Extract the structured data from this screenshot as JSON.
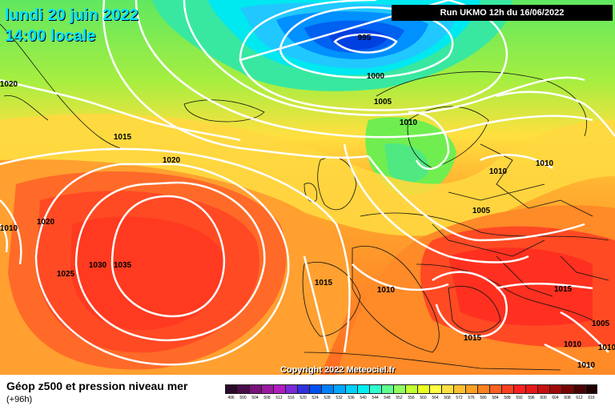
{
  "header": {
    "date_line": "lundi 20 juin 2022",
    "time_line": "14:00 locale",
    "run_info": "Run UKMO 12h du 16/06/2022"
  },
  "map": {
    "copyright": "Copyright 2022 Meteociel.fr",
    "isobar_labels": [
      "995",
      "1000",
      "1005",
      "1010",
      "1015",
      "1020",
      "1020",
      "1010",
      "1020",
      "1025",
      "1030",
      "1035",
      "1015",
      "1010",
      "1015",
      "1010",
      "1010",
      "1005",
      "1015",
      "1010",
      "1005",
      "1010",
      "1010"
    ]
  },
  "footer": {
    "title": "Géop z500 et pression niveau mer",
    "forecast_offset": "(+96h)",
    "scale_values": [
      "496",
      "500",
      "504",
      "508",
      "512",
      "516",
      "520",
      "524",
      "528",
      "532",
      "536",
      "540",
      "544",
      "548",
      "552",
      "556",
      "560",
      "564",
      "568",
      "572",
      "576",
      "580",
      "584",
      "588",
      "592",
      "596",
      "600",
      "604",
      "608",
      "612",
      "616"
    ],
    "scale_colors": [
      "#2a0a2a",
      "#4a0c4a",
      "#7a137a",
      "#9a1aa0",
      "#b21cc0",
      "#7a2ad8",
      "#3030e0",
      "#0050f0",
      "#0080ff",
      "#00a8ff",
      "#00d0ff",
      "#00f0f0",
      "#30ffd0",
      "#60ff90",
      "#90ff60",
      "#c0ff30",
      "#e8ff20",
      "#ffff40",
      "#ffe040",
      "#ffc030",
      "#ffa020",
      "#ff8020",
      "#ff6020",
      "#ff4020",
      "#ff2020",
      "#e81818",
      "#c81010",
      "#a00808",
      "#780404",
      "#4a0202",
      "#200000"
    ]
  }
}
